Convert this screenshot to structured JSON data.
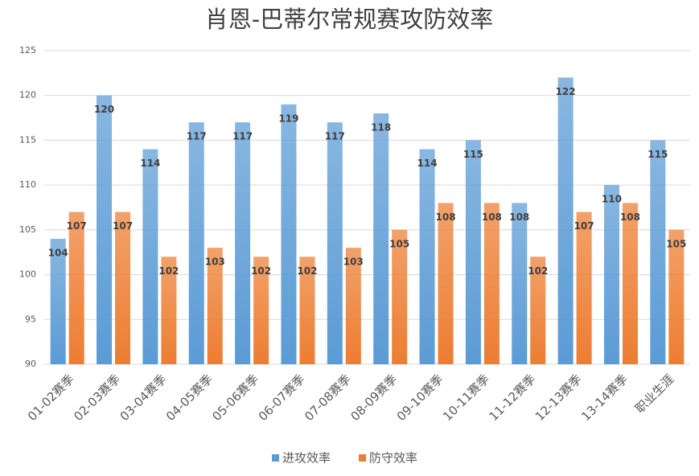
{
  "chart_data": {
    "type": "bar",
    "title": "肖恩-巴蒂尔常规赛攻防效率",
    "categories": [
      "01-02赛季",
      "02-03赛季",
      "03-04赛季",
      "04-05赛季",
      "05-06赛季",
      "06-07赛季",
      "07-08赛季",
      "08-09赛季",
      "09-10赛季",
      "10-11赛季",
      "11-12赛季",
      "12-13赛季",
      "13-14赛季",
      "职业生涯"
    ],
    "series": [
      {
        "name": "进攻效率",
        "color": "#5b9bd5",
        "values": [
          104,
          120,
          114,
          117,
          117,
          119,
          117,
          118,
          114,
          115,
          108,
          122,
          110,
          115
        ]
      },
      {
        "name": "防守效率",
        "color": "#ed7d31",
        "values": [
          107,
          107,
          102,
          103,
          102,
          102,
          103,
          105,
          108,
          108,
          102,
          107,
          108,
          105
        ]
      }
    ],
    "ylim": [
      90,
      125
    ],
    "yticks": [
      90,
      95,
      100,
      105,
      110,
      115,
      120,
      125
    ],
    "grid": true,
    "legend": "bottom"
  }
}
